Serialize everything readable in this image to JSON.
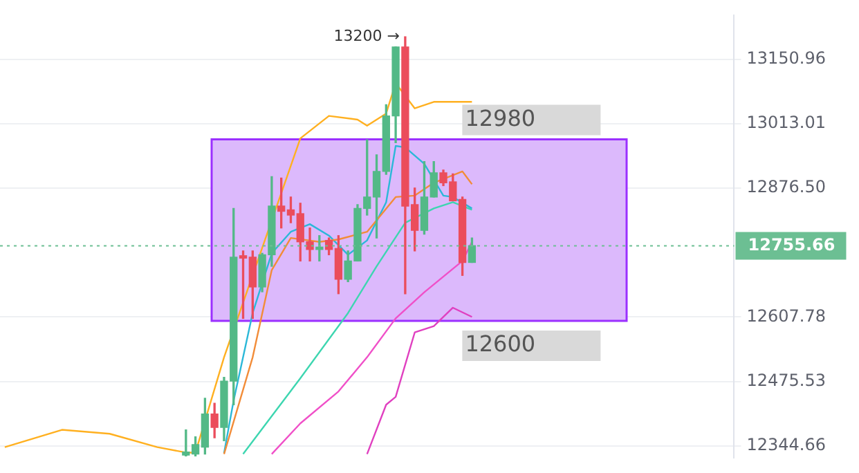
{
  "chart_data": {
    "type": "candlestick",
    "categories": [
      null,
      null,
      null,
      null,
      null,
      null,
      null,
      null,
      null,
      null,
      null,
      null,
      null,
      null,
      null,
      null,
      null,
      null,
      null,
      null,
      null,
      null,
      null,
      null,
      null,
      null,
      null,
      null,
      null,
      null,
      null,
      null,
      null,
      null,
      null,
      null,
      null,
      null,
      null,
      null,
      null,
      null,
      null,
      null,
      null,
      null,
      null,
      null,
      null,
      null,
      null,
      null,
      null,
      null,
      null,
      null,
      null,
      null,
      null,
      null,
      null,
      null,
      null,
      null,
      null,
      null,
      null,
      null,
      null,
      null,
      null,
      null,
      null,
      null,
      null,
      null,
      null
    ],
    "ohlc": [
      null,
      null,
      null,
      null,
      null,
      null,
      null,
      null,
      null,
      null,
      null,
      null,
      null,
      null,
      null,
      null,
      null,
      null,
      null,
      [
        12326,
        12377,
        12324,
        12332
      ],
      [
        12328,
        12363,
        12324,
        12347
      ],
      [
        12342,
        12441,
        12328,
        12409
      ],
      [
        12409,
        12431,
        12361,
        12382
      ],
      [
        12382,
        12484,
        12355,
        12476
      ],
      [
        12476,
        12834,
        12428,
        12732
      ],
      [
        12735,
        12745,
        12605,
        12730
      ],
      [
        12732,
        12745,
        12605,
        12670
      ],
      [
        12670,
        12740,
        12660,
        12737
      ],
      [
        12737,
        12901,
        12713,
        12839
      ],
      [
        12839,
        12898,
        12793,
        12828
      ],
      [
        12831,
        12858,
        12804,
        12820
      ],
      [
        12823,
        12845,
        12724,
        12764
      ],
      [
        12764,
        12793,
        12724,
        12748
      ],
      [
        12748,
        12777,
        12724,
        12753
      ],
      [
        12767,
        12772,
        12737,
        12748
      ],
      [
        12750,
        12777,
        12656,
        12686
      ],
      [
        12686,
        12745,
        12681,
        12724
      ],
      [
        12724,
        12842,
        12724,
        12834
      ],
      [
        12834,
        12979,
        12820,
        12858
      ],
      [
        12858,
        12947,
        12772,
        12912
      ],
      [
        12912,
        13054,
        12906,
        13030
      ],
      [
        13030,
        13178,
        12973,
        13178
      ],
      [
        13178,
        13200,
        12656,
        12839
      ],
      [
        12842,
        12877,
        12745,
        12788
      ],
      [
        12788,
        12933,
        12780,
        12858
      ],
      [
        12858,
        12933,
        12858,
        12909
      ],
      [
        12909,
        12915,
        12882,
        12888
      ],
      [
        12890,
        12907,
        12850,
        12850
      ],
      [
        12853,
        12858,
        12694,
        12721
      ],
      [
        12721,
        12772,
        12721,
        12756
      ],
      null,
      null,
      null,
      null,
      null,
      null,
      null,
      null,
      null,
      null,
      null,
      null,
      null,
      null,
      null,
      null,
      null,
      null,
      null,
      null,
      null,
      null,
      null,
      null,
      null,
      null,
      null
    ],
    "colors": [
      null,
      null,
      null,
      null,
      null,
      null,
      null,
      null,
      null,
      null,
      null,
      null,
      null,
      null,
      null,
      null,
      null,
      null,
      null,
      "#53b987",
      "#53b987",
      "#53b987",
      "#eb4d5c",
      "#53b987",
      "#53b987",
      "#eb4d5c",
      "#eb4d5c",
      "#53b987",
      "#53b987",
      "#eb4d5c",
      "#eb4d5c",
      "#eb4d5c",
      "#eb4d5c",
      "#53b987",
      "#eb4d5c",
      "#eb4d5c",
      "#53b987",
      "#53b987",
      "#53b987",
      "#53b987",
      "#53b987",
      "#53b987",
      "#eb4d5c",
      "#eb4d5c",
      "#53b987",
      "#53b987",
      "#eb4d5c",
      "#eb4d5c",
      "#eb4d5c",
      "#53b987",
      null,
      null,
      null,
      null,
      null,
      null,
      null,
      null,
      null,
      null,
      null,
      null,
      null,
      null,
      null,
      null,
      null,
      null,
      null,
      null,
      null,
      null,
      null,
      null,
      null,
      null,
      null
    ],
    "series": [
      {
        "type": "line",
        "color": "#ffb020",
        "values": [
          12342,
          null,
          null,
          null,
          null,
          null,
          12377,
          null,
          null,
          null,
          null,
          12369,
          null,
          null,
          null,
          null,
          12342,
          null,
          null,
          12331,
          12331,
          null,
          null,
          12525,
          null,
          null,
          null,
          null,
          null,
          12866,
          null,
          12982,
          null,
          null,
          13030,
          null,
          null,
          13022,
          13009,
          null,
          13035,
          13100,
          null,
          13046,
          null,
          13060,
          null,
          null,
          null,
          13060,
          null,
          null,
          null,
          null,
          null,
          null,
          null,
          null,
          null,
          null,
          null,
          null,
          null,
          null,
          null,
          null,
          null,
          null,
          null,
          null,
          null,
          null,
          null,
          null,
          null,
          null,
          null
        ]
      },
      {
        "type": "line",
        "color": "#f28c38",
        "values": [
          null,
          null,
          null,
          null,
          null,
          null,
          null,
          null,
          null,
          null,
          null,
          null,
          null,
          null,
          null,
          null,
          null,
          null,
          null,
          null,
          null,
          null,
          null,
          12328,
          null,
          null,
          12525,
          null,
          12705,
          null,
          12772,
          null,
          null,
          12764,
          null,
          12769,
          null,
          null,
          12785,
          null,
          null,
          12858,
          null,
          12861,
          null,
          12888,
          null,
          null,
          12912,
          12885,
          null,
          null,
          null,
          null,
          null,
          null,
          null,
          null,
          null,
          null,
          null,
          null,
          null,
          null,
          null,
          null,
          null,
          null,
          null,
          null,
          null,
          null,
          null,
          null,
          null,
          null,
          null
        ]
      },
      {
        "type": "line",
        "color": "#2bb8d8",
        "values": [
          null,
          null,
          null,
          null,
          null,
          null,
          null,
          null,
          null,
          null,
          null,
          null,
          null,
          null,
          null,
          null,
          null,
          null,
          null,
          null,
          null,
          null,
          null,
          12330,
          12436,
          null,
          12616,
          null,
          12740,
          null,
          12785,
          null,
          12801,
          null,
          12777,
          null,
          12737,
          null,
          12767,
          null,
          12847,
          12966,
          12963,
          null,
          12928,
          null,
          12861,
          12858,
          null,
          12834,
          null,
          null,
          null,
          null,
          null,
          null,
          null,
          null,
          null,
          null,
          null,
          null,
          null,
          null,
          null,
          null,
          null,
          null,
          null,
          null,
          null,
          null,
          null,
          null,
          null,
          null,
          null
        ]
      },
      {
        "type": "line",
        "color": "#3dd6b0",
        "values": [
          null,
          null,
          null,
          null,
          null,
          null,
          null,
          null,
          null,
          null,
          null,
          null,
          null,
          null,
          null,
          null,
          null,
          null,
          null,
          null,
          null,
          null,
          null,
          null,
          null,
          12328,
          null,
          null,
          null,
          null,
          null,
          12482,
          null,
          null,
          null,
          null,
          12616,
          null,
          null,
          12713,
          null,
          null,
          12804,
          null,
          null,
          12834,
          null,
          12847,
          null,
          12831,
          null,
          null,
          null,
          null,
          null,
          null,
          null,
          null,
          null,
          null,
          null,
          null,
          null,
          null,
          null,
          null,
          null,
          null,
          null,
          null,
          null,
          null,
          null,
          null,
          null,
          null,
          null
        ]
      },
      {
        "type": "line",
        "color": "#f050c8",
        "values": [
          null,
          null,
          null,
          null,
          null,
          null,
          null,
          null,
          null,
          null,
          null,
          null,
          null,
          null,
          null,
          null,
          null,
          null,
          null,
          null,
          null,
          null,
          null,
          null,
          null,
          null,
          null,
          null,
          12328,
          null,
          null,
          12390,
          null,
          null,
          null,
          12455,
          null,
          null,
          12525,
          null,
          null,
          12605,
          null,
          null,
          12659,
          null,
          null,
          null,
          12724,
          12764,
          null,
          null,
          null,
          null,
          null,
          null,
          null,
          null,
          null,
          null,
          null,
          null,
          null,
          null,
          null,
          null,
          null,
          null,
          null,
          null,
          null,
          null,
          null,
          null,
          null,
          null,
          null
        ]
      },
      {
        "type": "line",
        "color": "#e040c0",
        "values": [
          null,
          null,
          null,
          null,
          null,
          null,
          null,
          null,
          null,
          null,
          null,
          null,
          null,
          null,
          null,
          null,
          null,
          null,
          null,
          null,
          null,
          null,
          null,
          null,
          null,
          null,
          null,
          null,
          null,
          null,
          null,
          null,
          null,
          null,
          null,
          null,
          null,
          null,
          12328,
          null,
          12428,
          12444,
          null,
          12576,
          null,
          12589,
          null,
          12627,
          null,
          12608,
          null,
          null,
          null,
          null,
          null,
          null,
          null,
          null,
          null,
          null,
          null,
          null,
          null,
          null,
          null,
          null,
          null,
          null,
          null,
          null,
          null,
          null,
          null,
          null,
          null,
          null,
          null
        ]
      }
    ],
    "log": "y",
    "ylim": [
      12321,
      13246
    ],
    "yticks": [
      12344.66,
      12475.53,
      12607.78,
      {
        "value": 12876.5,
        "label": "12876.50"
      },
      13013.01,
      13150.96
    ],
    "grid": "y",
    "tick_labels": "y",
    "bands": [
      {
        "axis": "y",
        "from": 12600,
        "to": 12980,
        "label": null,
        "color": "#dcb9fc"
      }
    ],
    "ref_lines": [
      {
        "axis": "y",
        "value": 12755.66,
        "label": "12755.66",
        "color": "#6cbf93"
      }
    ],
    "annotations": [
      "13200 →",
      {
        "text": "12980",
        "y": 12980
      },
      {
        "text": "12600",
        "y": 12600
      }
    ]
  }
}
